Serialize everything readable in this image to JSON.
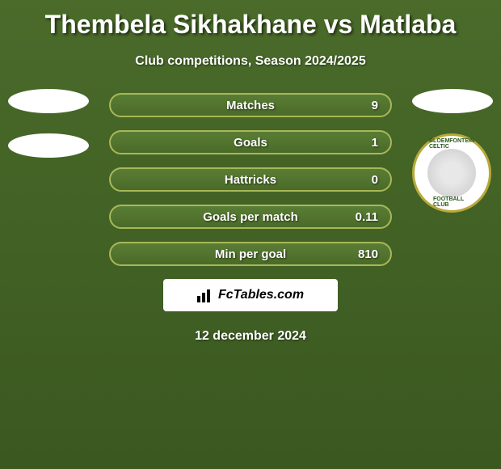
{
  "title": "Thembela Sikhakhane vs Matlaba",
  "subtitle": "Club competitions, Season 2024/2025",
  "stats": {
    "type": "comparison-bars",
    "bar_background_gradient": [
      "#5a7d35",
      "#4a6b28"
    ],
    "bar_border_color": "#a8b858",
    "text_color": "#ffffff",
    "rows": [
      {
        "label": "Matches",
        "value": "9"
      },
      {
        "label": "Goals",
        "value": "1"
      },
      {
        "label": "Hattricks",
        "value": "0"
      },
      {
        "label": "Goals per match",
        "value": "0.11"
      },
      {
        "label": "Min per goal",
        "value": "810"
      }
    ]
  },
  "right_club_badge": {
    "ring_color": "#b8a838",
    "text_color": "#2a5818",
    "top_text": "BLOEMFONTEIN CELTIC",
    "bottom_text": "FOOTBALL CLUB"
  },
  "footer_brand": "FcTables.com",
  "date_text": "12 december 2024",
  "background_gradient": [
    "#4a6b2a",
    "#3a5820"
  ]
}
